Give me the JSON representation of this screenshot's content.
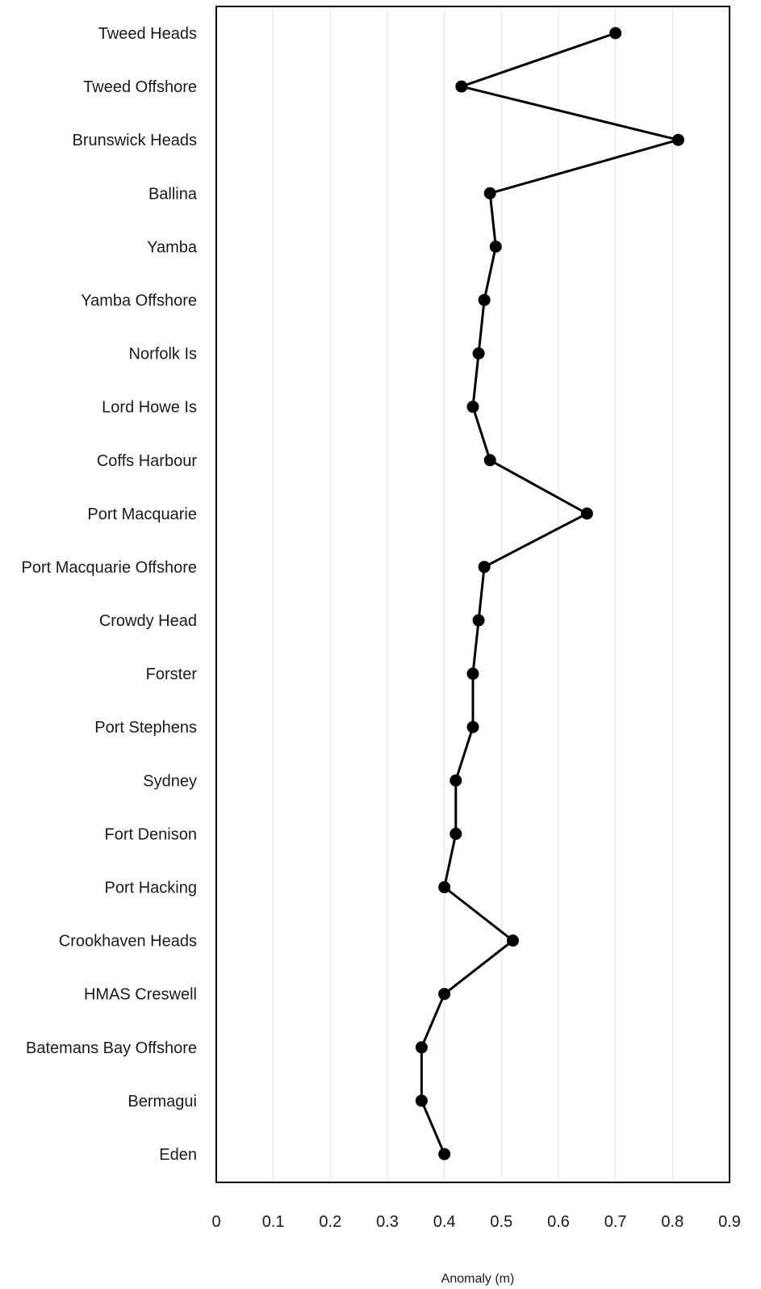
{
  "chart_data": {
    "type": "line",
    "orientation": "horizontal",
    "categories": [
      "Tweed Heads",
      "Tweed Offshore",
      "Brunswick Heads",
      "Ballina",
      "Yamba",
      "Yamba Offshore",
      "Norfolk Is",
      "Lord Howe Is",
      "Coffs Harbour",
      "Port Macquarie",
      "Port Macquarie Offshore",
      "Crowdy Head",
      "Forster",
      "Port Stephens",
      "Sydney",
      "Fort Denison",
      "Port Hacking",
      "Crookhaven Heads",
      "HMAS Creswell",
      "Batemans Bay Offshore",
      "Bermagui",
      "Eden"
    ],
    "values": [
      0.7,
      0.43,
      0.81,
      0.48,
      0.49,
      0.47,
      0.46,
      0.45,
      0.48,
      0.65,
      0.47,
      0.46,
      0.45,
      0.45,
      0.42,
      0.42,
      0.4,
      0.52,
      0.4,
      0.36,
      0.36,
      0.4
    ],
    "xlabel": "Anomaly (m)",
    "ylabel": "",
    "title": "",
    "xlim": [
      0,
      0.9
    ],
    "xticks": [
      "0",
      "0.1",
      "0.2",
      "0.3",
      "0.4",
      "0.5",
      "0.6",
      "0.7",
      "0.8",
      "0.9"
    ],
    "grid": "vertical",
    "legend": "none",
    "colors": {
      "line": "#000000",
      "marker": "#000000",
      "grid": "#e3e3e3",
      "frame": "#000000"
    }
  }
}
